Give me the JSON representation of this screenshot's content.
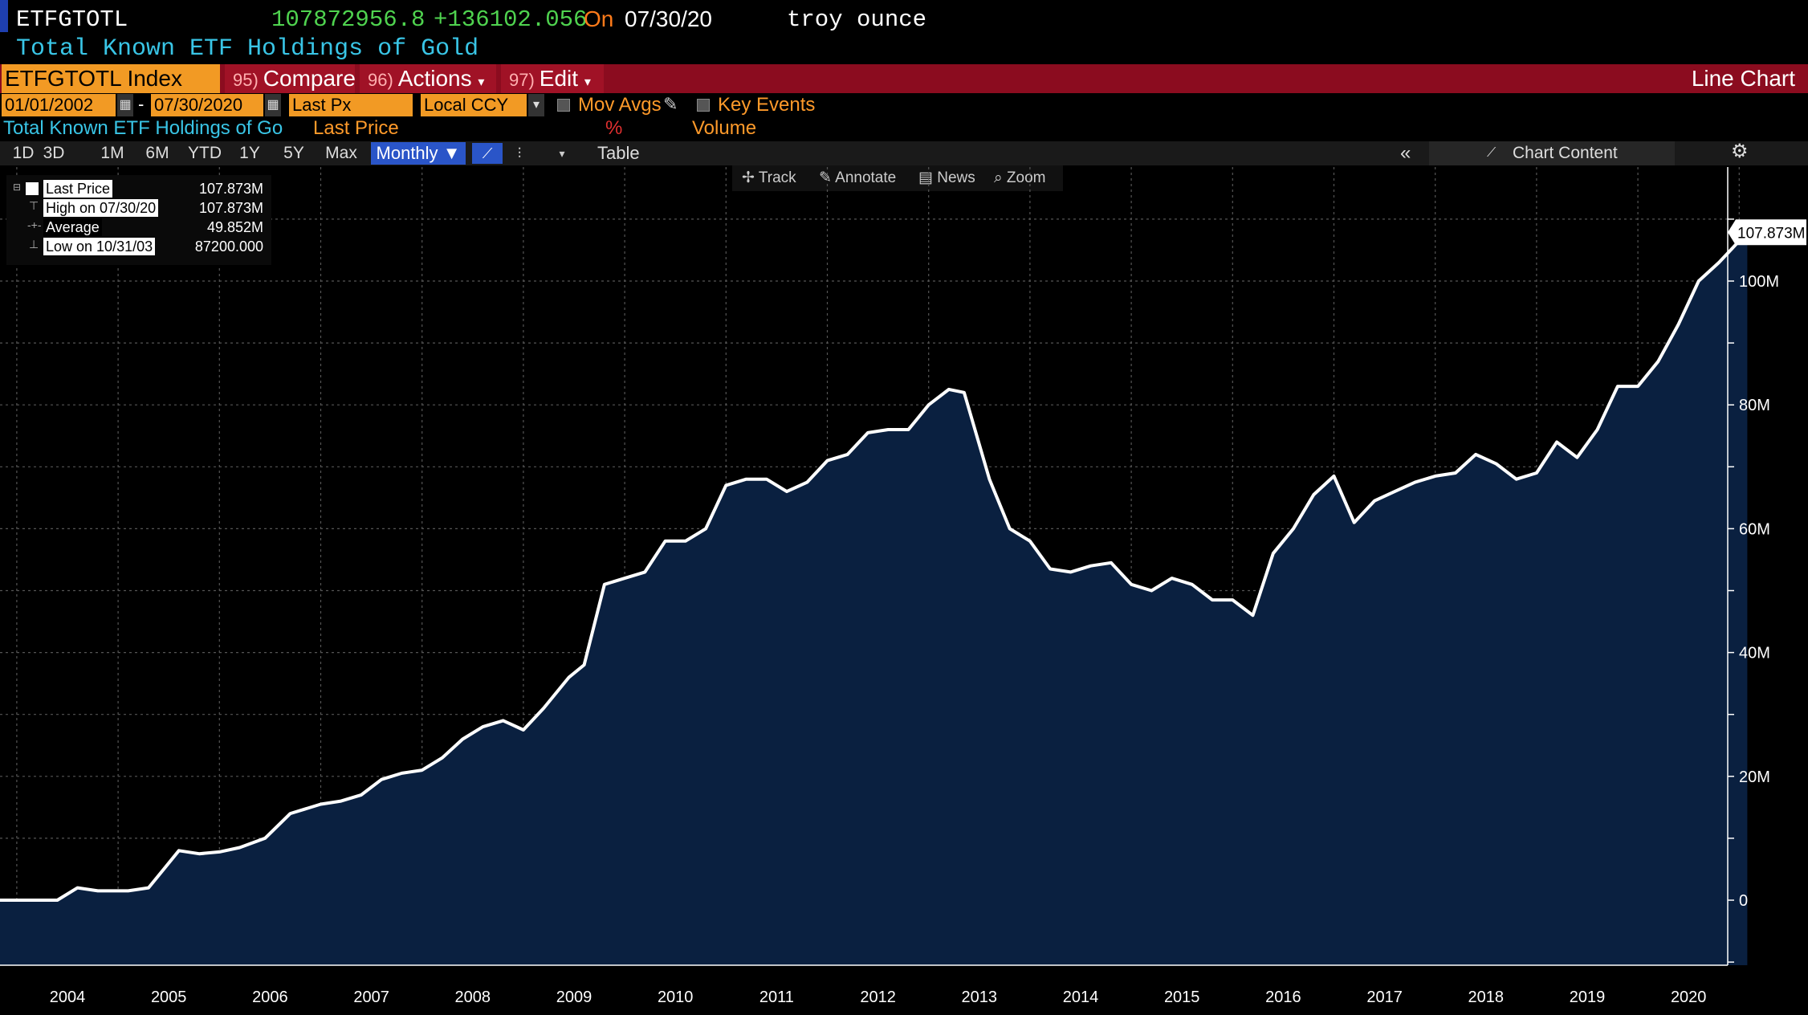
{
  "header": {
    "ticker": "ETFGTOTL",
    "last_value": "107872956.8",
    "change": "+136102.056",
    "on_label": "On",
    "date": "07/30/20",
    "unit": "troy ounce",
    "subtitle": "Total Known ETF Holdings of Gold"
  },
  "toolbar": {
    "security": "ETFGTOTL Index",
    "compare": {
      "num": "95)",
      "label": "Compare"
    },
    "actions": {
      "num": "96)",
      "label": "Actions"
    },
    "edit": {
      "num": "97)",
      "label": "Edit"
    },
    "chart_type": "Line Chart"
  },
  "controls": {
    "start_date": "01/01/2002",
    "date_sep": "-",
    "end_date": "07/30/2020",
    "field": "Last Px",
    "currency": "Local CCY",
    "mov_avgs": "Mov Avgs",
    "key_events": "Key Events",
    "row_title": "Total Known ETF Holdings of Go",
    "row_field": "Last Price",
    "row_pct": "%",
    "row_volume": "Volume"
  },
  "range_buttons": [
    "1D",
    "3D",
    "1M",
    "6M",
    "YTD",
    "1Y",
    "5Y",
    "Max"
  ],
  "frequency": "Monthly",
  "table_label": "Table",
  "chart_content_label": "Chart Content",
  "chart_tools": [
    "Track",
    "Annotate",
    "News",
    "Zoom"
  ],
  "legend": {
    "rows": [
      {
        "label": "Last Price",
        "value": "107.873M"
      },
      {
        "label": "High on 07/30/20",
        "value": "107.873M"
      },
      {
        "label": "Average",
        "value": "49.852M"
      },
      {
        "label": "Low on 10/31/03",
        "value": "87200.000"
      }
    ]
  },
  "colors": {
    "line": "#ffffff",
    "fill": "#0a2040",
    "accent_orange": "#f29a24",
    "bar_red": "#8b0c1f",
    "subtitle_cyan": "#39c5e6",
    "price_green": "#4fd34f"
  },
  "chart_data": {
    "type": "area",
    "title": "Total Known ETF Holdings of Gold",
    "ylabel": "troy ounce",
    "ylim": [
      -10000000,
      115000000
    ],
    "y_ticks": [
      0,
      20000000,
      40000000,
      60000000,
      80000000,
      100000000
    ],
    "y_tick_labels": [
      "0",
      "20M",
      "40M",
      "60M",
      "80M",
      "100M"
    ],
    "x_tick_labels": [
      "2004",
      "2005",
      "2006",
      "2007",
      "2008",
      "2009",
      "2010",
      "2011",
      "2012",
      "2013",
      "2014",
      "2015",
      "2016",
      "2017",
      "2018",
      "2019",
      "2020"
    ],
    "last_value_label": "107.873M",
    "grid": true,
    "series": [
      {
        "x": [
          2003.2,
          2003.5,
          2003.8,
          2003.9,
          2004.1,
          2004.3,
          2004.6,
          2004.8,
          2004.95,
          2005.1,
          2005.3,
          2005.5,
          2005.7,
          2005.95,
          2006.2,
          2006.5,
          2006.7,
          2006.9,
          2007.1,
          2007.3,
          2007.5,
          2007.7,
          2007.9,
          2008.1,
          2008.3,
          2008.5,
          2008.7,
          2008.95,
          2009.1,
          2009.3,
          2009.5,
          2009.7,
          2009.9,
          2010.1,
          2010.3,
          2010.5,
          2010.7,
          2010.9,
          2011.1,
          2011.3,
          2011.5,
          2011.7,
          2011.9,
          2012.1,
          2012.3,
          2012.5,
          2012.7,
          2012.85,
          2013.1,
          2013.3,
          2013.5,
          2013.7,
          2013.9,
          2014.1,
          2014.3,
          2014.5,
          2014.7,
          2014.9,
          2015.1,
          2015.3,
          2015.5,
          2015.7,
          2015.9,
          2016.1,
          2016.3,
          2016.5,
          2016.7,
          2016.9,
          2017.1,
          2017.3,
          2017.5,
          2017.7,
          2017.9,
          2018.1,
          2018.3,
          2018.5,
          2018.7,
          2018.9,
          2019.1,
          2019.3,
          2019.5,
          2019.7,
          2019.9,
          2020.1,
          2020.3,
          2020.58
        ],
        "values": [
          0,
          0,
          0,
          0,
          2000000,
          1500000,
          1500000,
          2000000,
          5000000,
          8000000,
          7500000,
          7800000,
          8500000,
          10000000,
          14000000,
          15500000,
          16000000,
          17000000,
          19500000,
          20500000,
          21000000,
          23000000,
          26000000,
          28000000,
          29000000,
          27500000,
          31000000,
          36000000,
          38000000,
          51000000,
          52000000,
          53000000,
          58000000,
          58000000,
          60000000,
          67000000,
          68000000,
          68000000,
          66000000,
          67500000,
          71000000,
          72000000,
          75500000,
          76000000,
          76000000,
          80000000,
          82500000,
          82000000,
          68000000,
          60000000,
          58000000,
          53500000,
          53000000,
          54000000,
          54500000,
          51000000,
          50000000,
          52000000,
          51000000,
          48500000,
          48500000,
          46000000,
          56000000,
          60000000,
          65500000,
          68500000,
          61000000,
          64500000,
          66000000,
          67500000,
          68500000,
          69000000,
          72000000,
          70500000,
          68000000,
          69000000,
          74000000,
          71500000,
          76000000,
          83000000,
          83000000,
          87000000,
          93000000,
          100000000,
          103000000,
          107873000
        ]
      }
    ]
  }
}
